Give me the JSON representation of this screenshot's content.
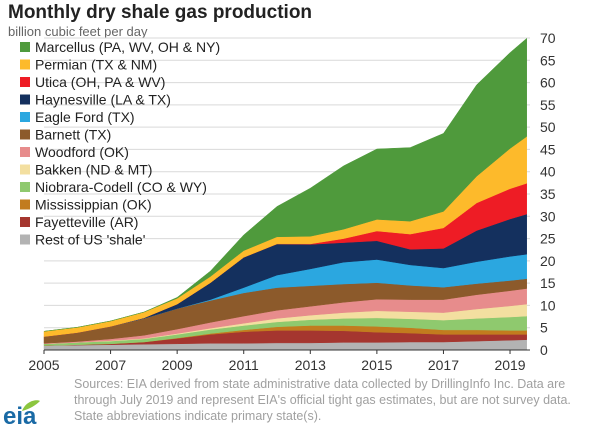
{
  "chart_data": {
    "type": "area",
    "stacked": true,
    "title": "Monthly dry shale gas production",
    "subtitle": "billion cubic feet per day",
    "xlabel": "",
    "ylabel": "",
    "x": [
      2005,
      2006,
      2007,
      2008,
      2009,
      2010,
      2011,
      2012,
      2013,
      2014,
      2015,
      2016,
      2017,
      2018,
      2019,
      2019.5
    ],
    "x_ticks": [
      "2005",
      "2007",
      "2009",
      "2011",
      "2013",
      "2015",
      "2017",
      "2019"
    ],
    "xlim": [
      2005,
      2019.6
    ],
    "ylim": [
      0,
      70
    ],
    "y_ticks": [
      "0",
      "5",
      "10",
      "15",
      "20",
      "25",
      "30",
      "35",
      "40",
      "45",
      "50",
      "55",
      "60",
      "65",
      "70"
    ],
    "y_axis_side": "right",
    "grid": true,
    "legend_position": "top-left",
    "series": [
      {
        "name": "Rest of US 'shale'",
        "color": "#b3b3b3",
        "values": [
          1.0,
          1.1,
          1.2,
          1.3,
          1.4,
          1.5,
          1.5,
          1.6,
          1.6,
          1.7,
          1.7,
          1.8,
          1.8,
          2.0,
          2.2,
          2.3
        ]
      },
      {
        "name": "Fayetteville (AR)",
        "color": "#a5362f",
        "values": [
          0.0,
          0.1,
          0.2,
          0.5,
          1.2,
          2.0,
          2.6,
          2.8,
          2.8,
          2.6,
          2.3,
          2.0,
          1.7,
          1.5,
          1.3,
          1.2
        ]
      },
      {
        "name": "Mississippian (OK)",
        "color": "#c27c1e",
        "values": [
          0.0,
          0.0,
          0.0,
          0.0,
          0.1,
          0.2,
          0.4,
          0.8,
          1.1,
          1.2,
          1.3,
          1.2,
          1.0,
          1.0,
          0.9,
          0.9
        ]
      },
      {
        "name": "Niobrara-Codell (CO & WY)",
        "color": "#8fc96e",
        "values": [
          0.4,
          0.5,
          0.6,
          0.7,
          0.8,
          0.9,
          1.0,
          1.1,
          1.3,
          1.6,
          1.9,
          2.0,
          2.2,
          2.6,
          3.0,
          3.2
        ]
      },
      {
        "name": "Bakken (ND & MT)",
        "color": "#f3dfa0",
        "values": [
          0.0,
          0.0,
          0.1,
          0.1,
          0.2,
          0.3,
          0.5,
          0.8,
          1.0,
          1.3,
          1.6,
          1.6,
          1.7,
          2.1,
          2.5,
          2.7
        ]
      },
      {
        "name": "Woodford (OK)",
        "color": "#e78c8c",
        "values": [
          0.1,
          0.2,
          0.4,
          0.7,
          1.0,
          1.3,
          1.6,
          1.8,
          2.0,
          2.3,
          2.6,
          2.7,
          2.9,
          3.2,
          3.4,
          3.5
        ]
      },
      {
        "name": "Barnett (TX)",
        "color": "#8c5a2b",
        "values": [
          1.5,
          2.0,
          2.8,
          3.8,
          4.6,
          4.9,
          5.2,
          5.1,
          4.6,
          4.1,
          3.7,
          3.2,
          2.8,
          2.5,
          2.3,
          2.2
        ]
      },
      {
        "name": "Eagle Ford (TX)",
        "color": "#2ba7e0",
        "values": [
          0.0,
          0.0,
          0.0,
          0.0,
          0.0,
          0.2,
          1.2,
          2.8,
          3.8,
          4.9,
          5.2,
          4.6,
          4.3,
          4.9,
          5.4,
          5.5
        ]
      },
      {
        "name": "Haynesville (LA & TX)",
        "color": "#14305e",
        "values": [
          0.0,
          0.0,
          0.0,
          0.1,
          1.0,
          3.8,
          6.8,
          7.0,
          5.5,
          4.4,
          4.2,
          3.5,
          4.4,
          7.0,
          8.4,
          9.0
        ]
      },
      {
        "name": "Utica (OH, PA & WV)",
        "color": "#ee1c25",
        "values": [
          0.0,
          0.0,
          0.0,
          0.0,
          0.0,
          0.0,
          0.0,
          0.0,
          0.1,
          0.9,
          2.2,
          3.4,
          4.6,
          6.2,
          6.8,
          6.9
        ]
      },
      {
        "name": "Permian (TX & NM)",
        "color": "#fdba2b",
        "values": [
          1.2,
          1.2,
          1.2,
          1.3,
          1.3,
          1.4,
          1.5,
          1.6,
          1.7,
          2.1,
          2.6,
          2.9,
          3.7,
          6.0,
          9.0,
          10.5
        ]
      },
      {
        "name": "Marcellus (PA, WV, OH & NY)",
        "color": "#4f9a3c",
        "values": [
          0.0,
          0.0,
          0.0,
          0.0,
          0.2,
          1.2,
          3.5,
          6.8,
          10.8,
          14.2,
          15.8,
          16.5,
          17.5,
          20.5,
          21.5,
          22.0
        ]
      }
    ],
    "legend_order": [
      "Marcellus (PA, WV, OH & NY)",
      "Permian (TX & NM)",
      "Utica (OH, PA & WV)",
      "Haynesville (LA & TX)",
      "Eagle Ford (TX)",
      "Barnett (TX)",
      "Woodford (OK)",
      "Bakken (ND & MT)",
      "Niobrara-Codell (CO & WY)",
      "Mississippian (OK)",
      "Fayetteville (AR)",
      "Rest of US 'shale'"
    ]
  },
  "source_note": "Sources: EIA derived from state administrative data collected by DrillingInfo Inc. Data are through July 2019  and represent EIA's  official tight gas estimates, but are not survey data. State abbreviations indicate primary state(s).",
  "logo_text": "eia",
  "logo_color": "#1a6aa5",
  "logo_accent": "#8cc63f"
}
